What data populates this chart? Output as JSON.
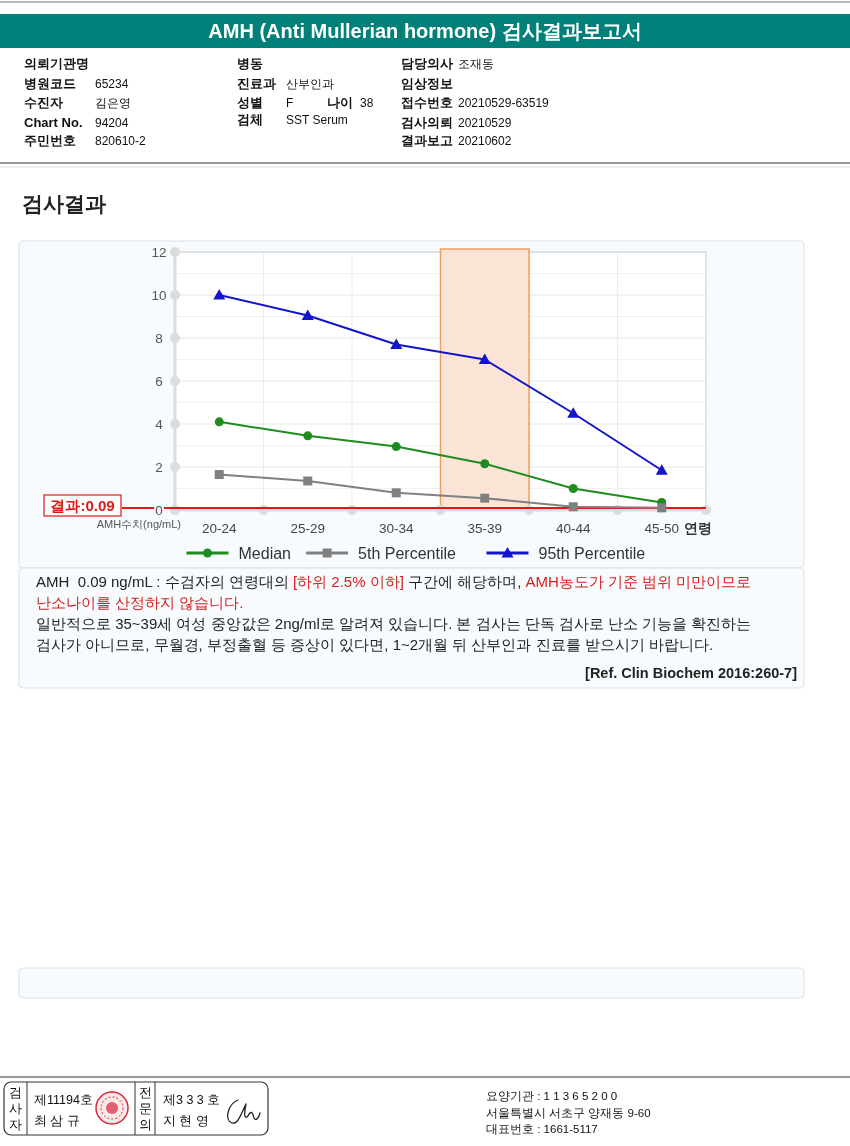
{
  "chart_data": {
    "type": "line",
    "title": "AMH (Anti Mullerian hormone) 검사결과보고서",
    "subtitle": "검사결과",
    "xlabel": "연령",
    "ylabel": "AMH수치(ng/mL)",
    "categories": [
      "20-24",
      "25-29",
      "30-34",
      "35-39",
      "40-44",
      "45-50"
    ],
    "series": [
      {
        "name": "Median",
        "color": "#1e8c1e",
        "marker": "circle",
        "values": [
          4.1,
          3.45,
          2.95,
          2.15,
          1.0,
          0.35
        ]
      },
      {
        "name": "5th Percentile",
        "color": "#808080",
        "marker": "square",
        "values": [
          1.65,
          1.35,
          0.8,
          0.55,
          0.15,
          0.1
        ]
      },
      {
        "name": "95th Percentile",
        "color": "#1414cc",
        "marker": "triangle",
        "values": [
          10.0,
          9.05,
          7.7,
          7.0,
          4.5,
          1.85
        ]
      }
    ],
    "ylim": [
      0,
      12
    ],
    "yticks": [
      0,
      {
        "value": 1,
        "label": null
      },
      2,
      {
        "value": 3,
        "label": null
      },
      4,
      {
        "value": 5,
        "label": null
      },
      6,
      {
        "value": 7,
        "label": null
      },
      8,
      {
        "value": 9,
        "label": null
      },
      10,
      {
        "value": 11,
        "label": null
      },
      12
    ],
    "grid": true,
    "legend": "bottom",
    "bands": [
      {
        "axis": "x",
        "from": "35-39",
        "to": "35-39",
        "color": "#fbe0d0"
      }
    ],
    "ref_lines": [
      {
        "axis": "y",
        "value": 0.09,
        "label": "결과:0.09",
        "color": "#e01818"
      }
    ],
    "annotations": [
      "의뢰기관명",
      "병원코드",
      "65234",
      "수진자",
      "김은영",
      "Chart No.",
      "94204",
      "주민번호",
      "820610-2",
      "병동",
      "진료과",
      "산부인과",
      "성별",
      "F",
      "나이",
      "38",
      "검체",
      "SST Serum",
      "담당의사",
      "조재동",
      "임상정보",
      "접수번호",
      "20210529-63519",
      "검사의뢰",
      "20210529",
      "결과보고",
      "20210602",
      "AMH  0.09 ng/mL : 수검자의 연령대의",
      "[하위 2.5% 이하]",
      "구간에 해당하며,",
      "AMH농도가 기준 범위 미만이므로",
      "난소나이를 산정하지 않습니다.",
      "일반적으로 35~39세 여성 중앙값은 2ng/ml로 알려져 있습니다. 본 검사는 단독 검사로 난소 기능을 확진하는 검사가 아니므로, 무월경, 부정출혈 등 증상이 있다면, 1~2개월 뒤 산부인과 진료를 받으시기 바랍니다.",
      "[Ref. Clin Biochem 2016:260-7]",
      "검사자",
      "제11194호",
      "최 삼 규",
      "전문의",
      "제3 3 3 호",
      "지 현 영",
      "요양기관 : 1 1 3 6 5 2 0 0",
      "서울특별시 서초구 양재동 9-60",
      "대표번호 : 1661-5117"
    ]
  }
}
